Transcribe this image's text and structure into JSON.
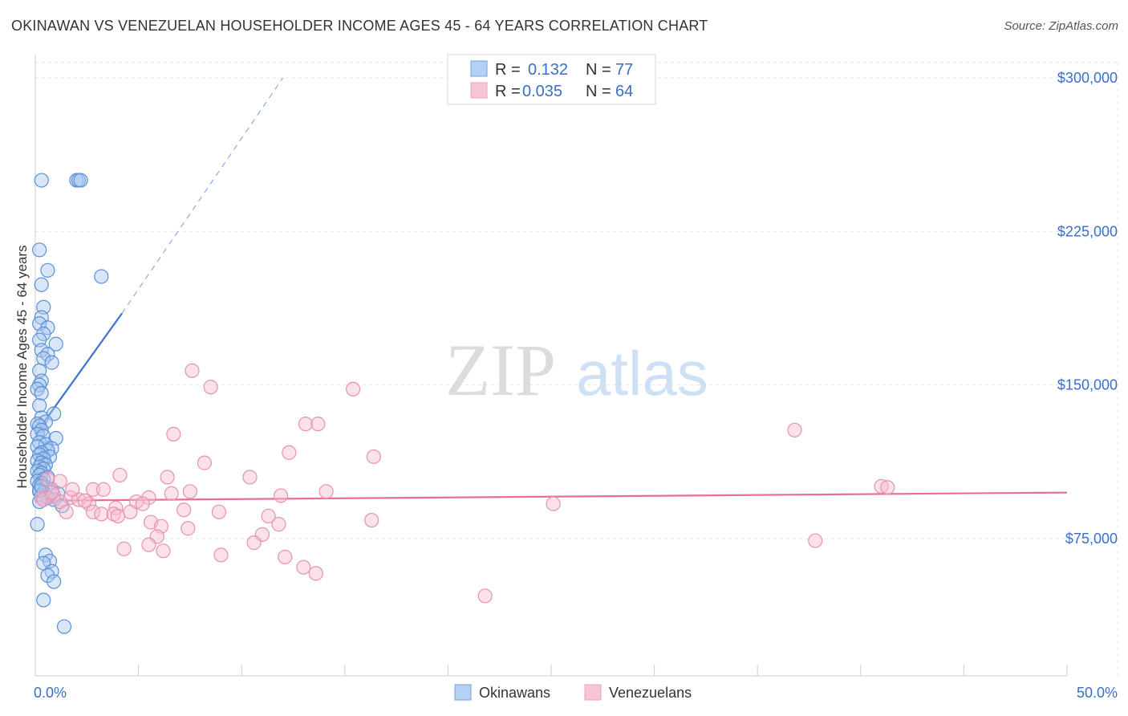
{
  "title": "OKINAWAN VS VENEZUELAN HOUSEHOLDER INCOME AGES 45 - 64 YEARS CORRELATION CHART",
  "source": "Source: ZipAtlas.com",
  "watermark": {
    "zip": "ZIP",
    "atlas": "atlas"
  },
  "colors": {
    "okinawan_fill": "#a8c8f0",
    "okinawan_stroke": "#5b8fd6",
    "okinawan_line": "#3a73d0",
    "venezuelan_fill": "#f6bcd0",
    "venezuelan_stroke": "#e891b0",
    "venezuelan_line": "#e46f98",
    "tick_text": "#3a6fc4",
    "grid": "#e6e6e6"
  },
  "legend_top": {
    "rows": [
      {
        "r_label": "R =",
        "r_value": "0.132",
        "n_label": "N =",
        "n_value": "77"
      },
      {
        "r_label": "R =",
        "r_value": "0.035",
        "n_label": "N =",
        "n_value": "64"
      }
    ]
  },
  "legend_bottom": {
    "okinawans": "Okinawans",
    "venezuelans": "Venezuelans"
  },
  "chart_data": {
    "type": "scatter",
    "title": "OKINAWAN VS VENEZUELAN HOUSEHOLDER INCOME AGES 45 - 64 YEARS CORRELATION CHART",
    "xlabel": "",
    "ylabel": "Householder Income Ages 45 - 64 years",
    "xlim": [
      0,
      50
    ],
    "ylim": [
      15000,
      320000
    ],
    "x_tick_labels": {
      "min": "0.0%",
      "max": "50.0%"
    },
    "y_ticks": [
      {
        "value": 75000,
        "label": "$75,000"
      },
      {
        "value": 150000,
        "label": "$150,000"
      },
      {
        "value": 225000,
        "label": "$225,000"
      },
      {
        "value": 300000,
        "label": "$300,000"
      }
    ],
    "grid": true,
    "series": [
      {
        "name": "Okinawans",
        "r": 0.132,
        "n": 77,
        "trend": {
          "x0": 0,
          "y0": 126000,
          "x1": 4.2,
          "y1": 185000,
          "dash_x1": 12,
          "dash_y1": 300000
        },
        "points": [
          [
            0.3,
            250000
          ],
          [
            2.0,
            250000
          ],
          [
            2.1,
            250000
          ],
          [
            2.2,
            250000
          ],
          [
            0.2,
            216000
          ],
          [
            0.6,
            206000
          ],
          [
            3.2,
            203000
          ],
          [
            0.3,
            199000
          ],
          [
            0.4,
            188000
          ],
          [
            0.3,
            183000
          ],
          [
            0.2,
            180000
          ],
          [
            0.6,
            178000
          ],
          [
            0.4,
            175000
          ],
          [
            0.2,
            172000
          ],
          [
            1.0,
            170000
          ],
          [
            0.3,
            167000
          ],
          [
            0.6,
            165000
          ],
          [
            0.4,
            163000
          ],
          [
            0.8,
            161000
          ],
          [
            0.2,
            157000
          ],
          [
            0.3,
            152000
          ],
          [
            0.2,
            150000
          ],
          [
            0.1,
            148000
          ],
          [
            0.3,
            146000
          ],
          [
            0.2,
            140000
          ],
          [
            0.9,
            136000
          ],
          [
            0.3,
            134000
          ],
          [
            0.5,
            132000
          ],
          [
            0.1,
            131000
          ],
          [
            0.2,
            130000
          ],
          [
            0.3,
            128000
          ],
          [
            0.1,
            126000
          ],
          [
            0.4,
            125000
          ],
          [
            1.0,
            124000
          ],
          [
            0.2,
            122000
          ],
          [
            0.5,
            121000
          ],
          [
            0.1,
            120000
          ],
          [
            0.8,
            119000
          ],
          [
            0.6,
            118000
          ],
          [
            0.3,
            117000
          ],
          [
            0.2,
            116000
          ],
          [
            0.7,
            115000
          ],
          [
            0.4,
            114000
          ],
          [
            0.1,
            113000
          ],
          [
            0.3,
            112000
          ],
          [
            0.5,
            111000
          ],
          [
            0.2,
            110000
          ],
          [
            0.4,
            109000
          ],
          [
            0.1,
            108000
          ],
          [
            0.3,
            107000
          ],
          [
            0.2,
            106000
          ],
          [
            0.6,
            105000
          ],
          [
            0.4,
            104000
          ],
          [
            0.1,
            103000
          ],
          [
            0.3,
            102000
          ],
          [
            0.2,
            101000
          ],
          [
            0.5,
            100000
          ],
          [
            0.8,
            99000
          ],
          [
            0.2,
            98000
          ],
          [
            0.4,
            97500
          ],
          [
            1.1,
            97000
          ],
          [
            0.3,
            96000
          ],
          [
            0.6,
            95000
          ],
          [
            0.9,
            94000
          ],
          [
            0.2,
            93000
          ],
          [
            1.3,
            91000
          ],
          [
            0.1,
            82000
          ],
          [
            0.5,
            67000
          ],
          [
            0.7,
            64000
          ],
          [
            0.4,
            63000
          ],
          [
            0.8,
            59000
          ],
          [
            0.6,
            57000
          ],
          [
            0.9,
            54000
          ],
          [
            0.4,
            45000
          ],
          [
            1.4,
            32000
          ],
          [
            0.2,
            98500
          ],
          [
            0.3,
            100500
          ]
        ]
      },
      {
        "name": "Venezuelans",
        "r": 0.035,
        "n": 64,
        "trend": {
          "x0": 0,
          "y0": 93500,
          "x1": 50,
          "y1": 97500
        },
        "points": [
          [
            7.6,
            157000
          ],
          [
            8.5,
            149000
          ],
          [
            15.4,
            148000
          ],
          [
            13.1,
            131000
          ],
          [
            13.7,
            131000
          ],
          [
            36.8,
            128000
          ],
          [
            6.7,
            126000
          ],
          [
            12.3,
            117000
          ],
          [
            16.4,
            115000
          ],
          [
            8.2,
            112000
          ],
          [
            4.1,
            106000
          ],
          [
            6.4,
            105000
          ],
          [
            10.4,
            105000
          ],
          [
            0.6,
            104000
          ],
          [
            1.2,
            103000
          ],
          [
            41.0,
            100500
          ],
          [
            41.3,
            100000
          ],
          [
            2.8,
            99000
          ],
          [
            3.3,
            99000
          ],
          [
            7.5,
            98000
          ],
          [
            14.1,
            98000
          ],
          [
            6.6,
            97000
          ],
          [
            11.9,
            96000
          ],
          [
            0.9,
            96000
          ],
          [
            0.3,
            95000
          ],
          [
            1.7,
            95000
          ],
          [
            2.1,
            94000
          ],
          [
            5.5,
            95000
          ],
          [
            0.4,
            94000
          ],
          [
            1.2,
            93000
          ],
          [
            2.6,
            92000
          ],
          [
            4.9,
            93000
          ],
          [
            5.2,
            92000
          ],
          [
            25.1,
            92000
          ],
          [
            3.9,
            90000
          ],
          [
            2.8,
            88000
          ],
          [
            7.2,
            89000
          ],
          [
            8.9,
            88000
          ],
          [
            1.5,
            88000
          ],
          [
            3.2,
            87000
          ],
          [
            4.6,
            88000
          ],
          [
            3.8,
            87000
          ],
          [
            4.0,
            86000
          ],
          [
            11.3,
            86000
          ],
          [
            16.3,
            84000
          ],
          [
            5.6,
            83000
          ],
          [
            11.8,
            82000
          ],
          [
            6.1,
            81000
          ],
          [
            7.4,
            80000
          ],
          [
            11.0,
            77000
          ],
          [
            5.9,
            76000
          ],
          [
            37.8,
            74000
          ],
          [
            10.6,
            73000
          ],
          [
            5.5,
            72000
          ],
          [
            4.3,
            70000
          ],
          [
            6.2,
            69000
          ],
          [
            9.0,
            67000
          ],
          [
            12.1,
            66000
          ],
          [
            13.0,
            61000
          ],
          [
            13.6,
            58000
          ],
          [
            21.8,
            47000
          ],
          [
            1.8,
            99000
          ],
          [
            2.4,
            93500
          ],
          [
            0.8,
            97500
          ]
        ]
      }
    ]
  }
}
